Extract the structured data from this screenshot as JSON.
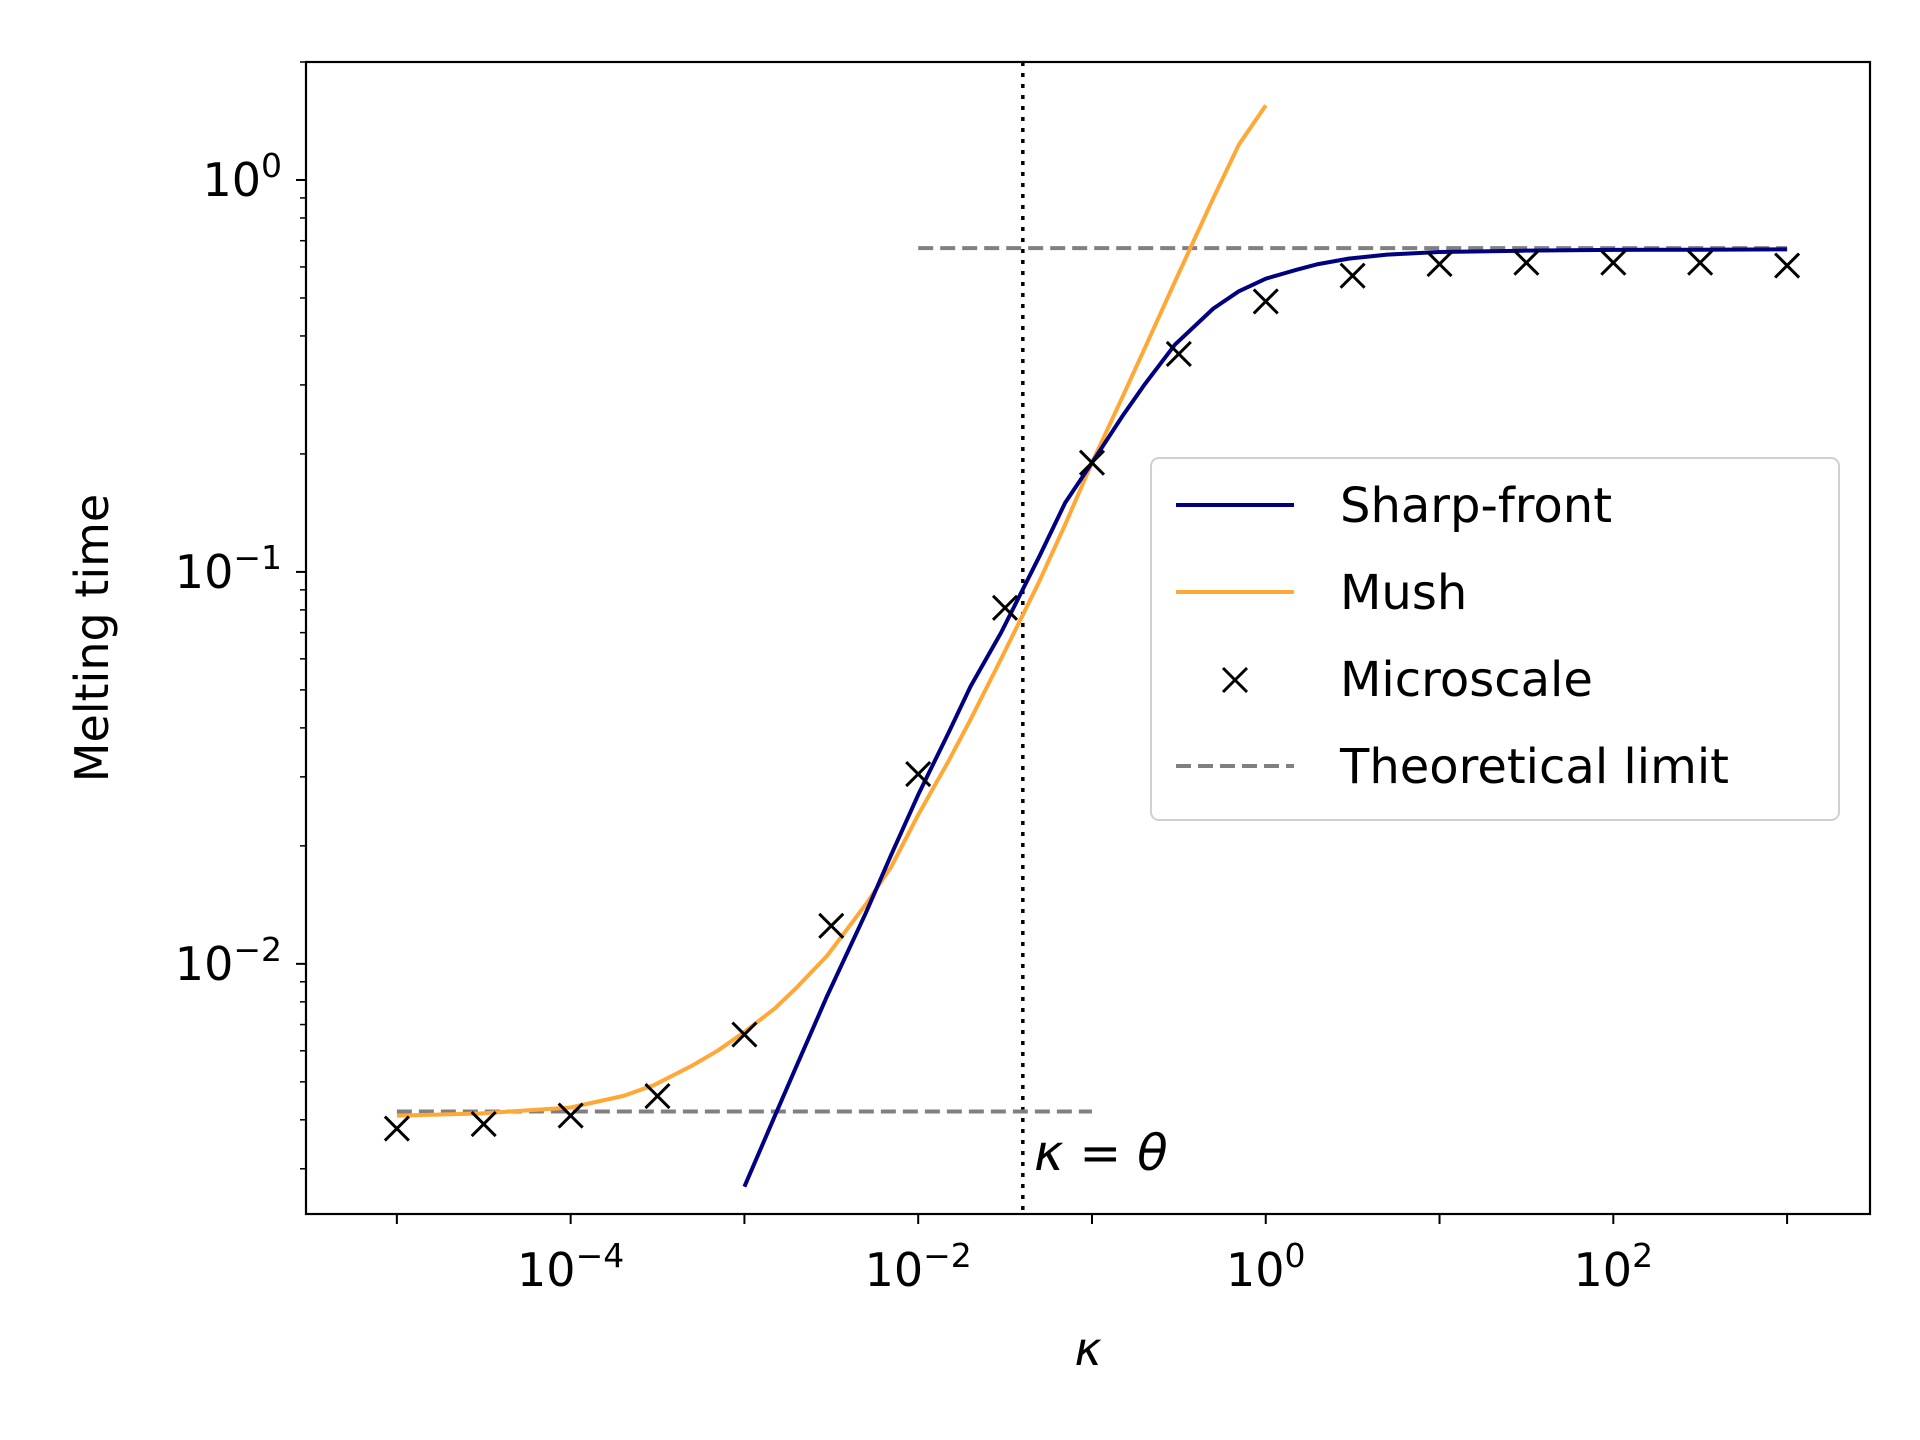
{
  "chart_data": {
    "type": "line",
    "xscale": "log",
    "yscale": "log",
    "xlim": [
      3e-06,
      3000
    ],
    "ylim": [
      0.0023,
      2.0
    ],
    "xlabel": "κ",
    "ylabel": "Melting time",
    "x_ticks": [
      {
        "value": 0.0001,
        "base": "10",
        "exp": "−4"
      },
      {
        "value": 0.01,
        "base": "10",
        "exp": "−2"
      },
      {
        "value": 1,
        "base": "10",
        "exp": "0"
      },
      {
        "value": 100,
        "base": "10",
        "exp": "2"
      }
    ],
    "y_ticks": [
      {
        "value": 0.01,
        "base": "10",
        "exp": "−2"
      },
      {
        "value": 0.1,
        "base": "10",
        "exp": "−1"
      },
      {
        "value": 1,
        "base": "10",
        "exp": "0"
      }
    ],
    "grid": false,
    "legend_position": "center-right",
    "colors": {
      "sharp_front": "#000080",
      "mush": "#FFA836",
      "microscale": "#000000",
      "theoretical_limit": "#808080",
      "theta_line": "#000000"
    },
    "series": [
      {
        "name": "Sharp-front",
        "style": "line",
        "x": [
          0.001,
          0.0015,
          0.002,
          0.003,
          0.005,
          0.007,
          0.01,
          0.015,
          0.02,
          0.03,
          0.05,
          0.07,
          0.1,
          0.15,
          0.2,
          0.3,
          0.5,
          0.7,
          1,
          1.5,
          2,
          3,
          5,
          10,
          30,
          100,
          300,
          1000
        ],
        "y": [
          0.0027,
          0.0041,
          0.0055,
          0.0083,
          0.0135,
          0.019,
          0.027,
          0.039,
          0.051,
          0.07,
          0.11,
          0.15,
          0.19,
          0.25,
          0.3,
          0.38,
          0.47,
          0.52,
          0.56,
          0.59,
          0.61,
          0.63,
          0.645,
          0.655,
          0.66,
          0.663,
          0.664,
          0.665
        ]
      },
      {
        "name": "Mush",
        "style": "line",
        "x": [
          1e-05,
          3e-05,
          0.0001,
          0.0002,
          0.0003,
          0.0005,
          0.0007,
          0.001,
          0.0015,
          0.002,
          0.003,
          0.005,
          0.007,
          0.01,
          0.015,
          0.02,
          0.03,
          0.05,
          0.07,
          0.1,
          0.15,
          0.2,
          0.3,
          0.5,
          0.7,
          1
        ],
        "y": [
          0.0041,
          0.00415,
          0.0043,
          0.0046,
          0.0049,
          0.0055,
          0.006,
          0.0067,
          0.0077,
          0.0087,
          0.0105,
          0.0142,
          0.0177,
          0.024,
          0.033,
          0.042,
          0.06,
          0.095,
          0.132,
          0.19,
          0.28,
          0.37,
          0.55,
          0.9,
          1.23,
          1.55
        ]
      },
      {
        "name": "Microscale",
        "style": "marker",
        "marker": "x",
        "x": [
          1e-05,
          3.16e-05,
          0.0001,
          0.000316,
          0.001,
          0.00316,
          0.01,
          0.0316,
          0.1,
          0.316,
          1,
          3.16,
          10,
          31.6,
          100,
          316,
          1000
        ],
        "y": [
          0.0038,
          0.0039,
          0.0041,
          0.0046,
          0.0066,
          0.0125,
          0.0305,
          0.081,
          0.19,
          0.36,
          0.49,
          0.57,
          0.61,
          0.615,
          0.615,
          0.615,
          0.605
        ]
      },
      {
        "name": "Theoretical limit",
        "style": "dashed",
        "segments": [
          {
            "x": [
              1e-05,
              0.1
            ],
            "y": [
              0.0042,
              0.0042
            ]
          },
          {
            "x": [
              0.01,
              1000
            ],
            "y": [
              0.67,
              0.67
            ]
          }
        ]
      }
    ],
    "annotations": [
      {
        "type": "vline",
        "x": 0.04,
        "style": "dotted"
      },
      {
        "text": "κ = θ",
        "x": 0.045,
        "y": 0.0027
      }
    ]
  }
}
